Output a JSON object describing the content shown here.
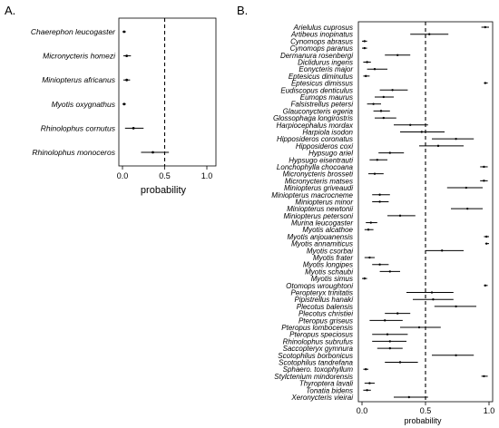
{
  "chart_data": [
    {
      "panel": "A.",
      "type": "forest",
      "xlabel": "probability",
      "xlim": [
        0,
        1
      ],
      "xticks": [
        "0.0",
        "0.5",
        "1.0"
      ],
      "reference_line": 0.5,
      "rows": [
        {
          "label": "Chaerephon leucogaster",
          "est": 0.02,
          "lo": 0.0,
          "hi": 0.04
        },
        {
          "label": "Micronycteris homezi",
          "est": 0.05,
          "lo": 0.01,
          "hi": 0.1
        },
        {
          "label": "Miniopterus africanus",
          "est": 0.05,
          "lo": 0.01,
          "hi": 0.09
        },
        {
          "label": "Myotis oxygnathus",
          "est": 0.02,
          "lo": 0.0,
          "hi": 0.04
        },
        {
          "label": "Rhinolophus cornutus",
          "est": 0.13,
          "lo": 0.03,
          "hi": 0.25
        },
        {
          "label": "Rhinolophus monoceros",
          "est": 0.36,
          "lo": 0.22,
          "hi": 0.55
        }
      ]
    },
    {
      "panel": "B.",
      "type": "forest",
      "xlabel": "probability",
      "xlim": [
        0,
        1
      ],
      "xticks": [
        "0.0",
        "0.5",
        "1.0"
      ],
      "reference_line": 0.5,
      "rows": [
        {
          "label": "Arielulus cuprosus",
          "est": 0.97,
          "lo": 0.94,
          "hi": 1.0
        },
        {
          "label": "Artibeus inopinatus",
          "est": 0.53,
          "lo": 0.38,
          "hi": 0.68
        },
        {
          "label": "Cynomops abrasus",
          "est": 0.02,
          "lo": 0.0,
          "hi": 0.04
        },
        {
          "label": "Cynomops paranus",
          "est": 0.02,
          "lo": 0.0,
          "hi": 0.04
        },
        {
          "label": "Dermanura rosenbergi",
          "est": 0.28,
          "lo": 0.18,
          "hi": 0.38
        },
        {
          "label": "Diclidurus ingens",
          "est": 0.04,
          "lo": 0.01,
          "hi": 0.07
        },
        {
          "label": "Eonycteris major",
          "est": 0.1,
          "lo": 0.04,
          "hi": 0.2
        },
        {
          "label": "Eptesicus diminutus",
          "est": 0.03,
          "lo": 0.01,
          "hi": 0.06
        },
        {
          "label": "Eptesicus dimissus",
          "est": 0.97,
          "lo": 0.96,
          "hi": 0.99
        },
        {
          "label": "Eudiscopus denticulus",
          "est": 0.24,
          "lo": 0.14,
          "hi": 0.36
        },
        {
          "label": "Eumops maurus",
          "est": 0.17,
          "lo": 0.1,
          "hi": 0.25
        },
        {
          "label": "Falsistrellus petersi",
          "est": 0.09,
          "lo": 0.04,
          "hi": 0.15
        },
        {
          "label": "Glauconycteris egeria",
          "est": 0.15,
          "lo": 0.09,
          "hi": 0.22
        },
        {
          "label": "Glossophaga longirostris",
          "est": 0.17,
          "lo": 0.1,
          "hi": 0.27
        },
        {
          "label": "Harpiocephalus mordax",
          "est": 0.38,
          "lo": 0.25,
          "hi": 0.52
        },
        {
          "label": "Harpiola isodon",
          "est": 0.47,
          "lo": 0.3,
          "hi": 0.65
        },
        {
          "label": "Hipposideros coronatus",
          "est": 0.74,
          "lo": 0.55,
          "hi": 0.88
        },
        {
          "label": "Hipposideros coxi",
          "est": 0.6,
          "lo": 0.45,
          "hi": 0.8
        },
        {
          "label": "Hypsugo ariel",
          "est": 0.22,
          "lo": 0.13,
          "hi": 0.33
        },
        {
          "label": "Hypsugo eisentrauti",
          "est": 0.12,
          "lo": 0.06,
          "hi": 0.2
        },
        {
          "label": "Lonchophylla chocoana",
          "est": 0.96,
          "lo": 0.93,
          "hi": 0.99
        },
        {
          "label": "Micronycteris brosseti",
          "est": 0.1,
          "lo": 0.05,
          "hi": 0.17
        },
        {
          "label": "Micronycteris matses",
          "est": 0.96,
          "lo": 0.93,
          "hi": 0.99
        },
        {
          "label": "Miniopterus griveaudi",
          "est": 0.82,
          "lo": 0.67,
          "hi": 0.95
        },
        {
          "label": "Miniopterus macrocneme",
          "est": 0.14,
          "lo": 0.08,
          "hi": 0.22
        },
        {
          "label": "Miniopterus minor",
          "est": 0.14,
          "lo": 0.08,
          "hi": 0.21
        },
        {
          "label": "Miniopterus newtonii",
          "est": 0.83,
          "lo": 0.7,
          "hi": 0.95
        },
        {
          "label": "Miniopterus petersoni",
          "est": 0.3,
          "lo": 0.2,
          "hi": 0.42
        },
        {
          "label": "Murina leucogaster",
          "est": 0.07,
          "lo": 0.03,
          "hi": 0.12
        },
        {
          "label": "Myotis alcathoe",
          "est": 0.05,
          "lo": 0.02,
          "hi": 0.09
        },
        {
          "label": "Myotis anjouanensis",
          "est": 0.98,
          "lo": 0.96,
          "hi": 1.0
        },
        {
          "label": "Myotis annamiticus",
          "est": 0.98,
          "lo": 0.97,
          "hi": 1.0
        },
        {
          "label": "Myotis csorbai",
          "est": 0.63,
          "lo": 0.5,
          "hi": 0.8
        },
        {
          "label": "Myotis frater",
          "est": 0.06,
          "lo": 0.02,
          "hi": 0.1
        },
        {
          "label": "Myotis longipes",
          "est": 0.14,
          "lo": 0.08,
          "hi": 0.21
        },
        {
          "label": "Myotis schaubi",
          "est": 0.22,
          "lo": 0.14,
          "hi": 0.3
        },
        {
          "label": "Myotis simus",
          "est": 0.02,
          "lo": 0.0,
          "hi": 0.04
        },
        {
          "label": "Otomops wroughtoni",
          "est": 0.97,
          "lo": 0.96,
          "hi": 0.99
        },
        {
          "label": "Peropteryx trinitatis",
          "est": 0.55,
          "lo": 0.35,
          "hi": 0.72
        },
        {
          "label": "Pipistrellus hanaki",
          "est": 0.56,
          "lo": 0.4,
          "hi": 0.72
        },
        {
          "label": "Plecotus balensis",
          "est": 0.74,
          "lo": 0.57,
          "hi": 0.9
        },
        {
          "label": "Plecotus christiei",
          "est": 0.28,
          "lo": 0.18,
          "hi": 0.38
        },
        {
          "label": "Pteropus griseus",
          "est": 0.18,
          "lo": 0.06,
          "hi": 0.32
        },
        {
          "label": "Pteropus lombocensis",
          "est": 0.45,
          "lo": 0.3,
          "hi": 0.62
        },
        {
          "label": "Pteropus speciosus",
          "est": 0.2,
          "lo": 0.08,
          "hi": 0.36
        },
        {
          "label": "Rhinolophus subrufus",
          "est": 0.22,
          "lo": 0.08,
          "hi": 0.35
        },
        {
          "label": "Saccopteryx gymnura",
          "est": 0.22,
          "lo": 0.12,
          "hi": 0.32
        },
        {
          "label": "Scotophilus borbonicus",
          "est": 0.74,
          "lo": 0.55,
          "hi": 0.88
        },
        {
          "label": "Scotophilus tandrefana",
          "est": 0.3,
          "lo": 0.18,
          "hi": 0.44
        },
        {
          "label": "Sphaero. toxophyllum",
          "est": 0.03,
          "lo": 0.01,
          "hi": 0.05
        },
        {
          "label": "Stylctenium mindorensis",
          "est": 0.96,
          "lo": 0.94,
          "hi": 0.99
        },
        {
          "label": "Thyroptera lavali",
          "est": 0.06,
          "lo": 0.02,
          "hi": 0.1
        },
        {
          "label": "Tonatia bidens",
          "est": 0.04,
          "lo": 0.01,
          "hi": 0.07
        },
        {
          "label": "Xeronycteris vieirai",
          "est": 0.37,
          "lo": 0.25,
          "hi": 0.52
        }
      ]
    }
  ]
}
